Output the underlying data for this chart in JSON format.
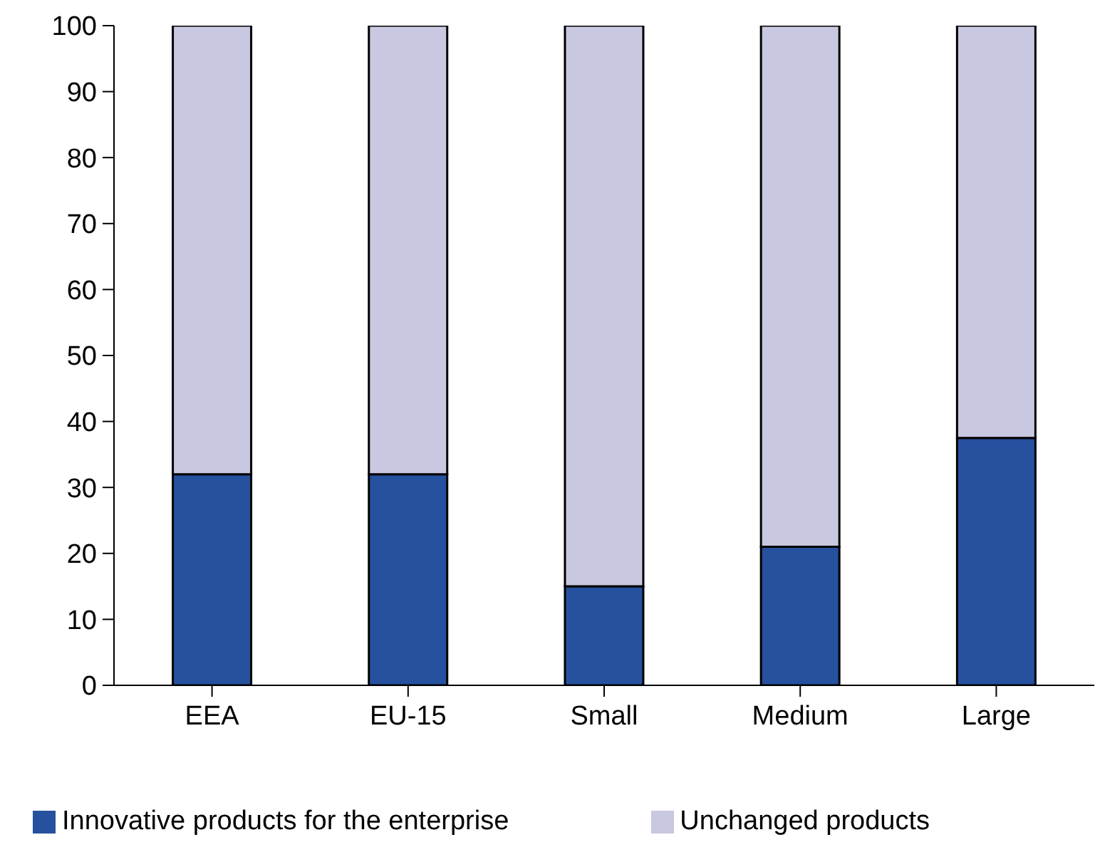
{
  "chart_data": {
    "type": "bar",
    "stacked": true,
    "categories": [
      "EEA",
      "EU-15",
      "Small",
      "Medium",
      "Large"
    ],
    "series": [
      {
        "name": "Innovative products for the enterprise",
        "color": "#26519e",
        "values": [
          32,
          32,
          15,
          21,
          37.5
        ]
      },
      {
        "name": "Unchanged products",
        "color": "#c8c8e0",
        "values": [
          68,
          68,
          85,
          79,
          62.5
        ]
      }
    ],
    "ylim": [
      0,
      100
    ],
    "yticks": [
      0,
      10,
      20,
      30,
      40,
      50,
      60,
      70,
      80,
      90,
      100
    ],
    "grid": false,
    "legend": "bottom"
  }
}
